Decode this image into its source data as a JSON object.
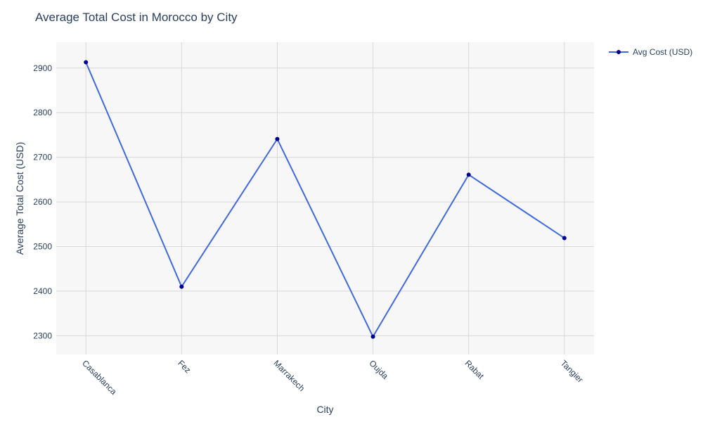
{
  "chart_data": {
    "type": "line",
    "title": "Average Total Cost in Morocco by City",
    "xlabel": "City",
    "ylabel": "Average Total Cost (USD)",
    "categories": [
      "Casablanca",
      "Fez",
      "Marrakech",
      "Oujda",
      "Rabat",
      "Tangier"
    ],
    "series": [
      {
        "name": "Avg Cost (USD)",
        "values": [
          2913,
          2410,
          2741,
          2298,
          2661,
          2519
        ],
        "line_color": "#4169e1",
        "marker_color": "#00008b"
      }
    ],
    "ylim": [
      2258,
      2958
    ],
    "yticks": [
      2300,
      2400,
      2500,
      2600,
      2700,
      2800,
      2900
    ],
    "grid": true,
    "legend_position": "top-right",
    "plot_background": "#f7f7f7",
    "grid_color": "#d9d9d9"
  }
}
